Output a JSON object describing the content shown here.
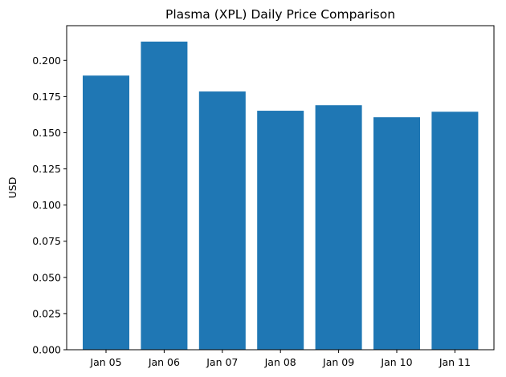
{
  "chart_data": {
    "type": "bar",
    "title": "Plasma (XPL) Daily Price Comparison",
    "xlabel": "",
    "ylabel": "USD",
    "categories": [
      "Jan 05",
      "Jan 06",
      "Jan 07",
      "Jan 08",
      "Jan 09",
      "Jan 10",
      "Jan 11"
    ],
    "values": [
      0.1895,
      0.213,
      0.1785,
      0.1652,
      0.169,
      0.1607,
      0.1645
    ],
    "ylim": [
      0,
      0.224
    ],
    "yticks": [
      0.0,
      0.025,
      0.05,
      0.075,
      0.1,
      0.125,
      0.15,
      0.175,
      0.2
    ],
    "ytick_labels": [
      "0.000",
      "0.025",
      "0.050",
      "0.075",
      "0.100",
      "0.125",
      "0.150",
      "0.175",
      "0.200"
    ],
    "bar_color": "#1f77b4",
    "grid": false,
    "legend": "none"
  }
}
